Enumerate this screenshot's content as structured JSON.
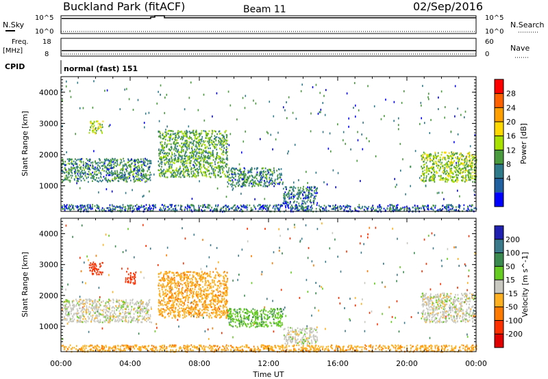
{
  "header": {
    "station": "Buckland Park (fitACF)",
    "beam": "Beam 11",
    "date": "02/Sep/2016"
  },
  "strip_labels": {
    "nsky": "N.Sky",
    "nsky_ticks": [
      "10^5",
      "10^0"
    ],
    "nsearch": "N.Search",
    "nsearch_ticks": [
      "10^5",
      "10^0"
    ],
    "freq": "Freq.",
    "freq_unit": "[MHz]",
    "freq_ticks": [
      "18",
      "8"
    ],
    "nave": "Nave",
    "nave_ticks": [
      "60",
      "0"
    ],
    "cpid": "CPID",
    "mode": "normal (fast) 151"
  },
  "chart_data": [
    {
      "type": "heatmap",
      "panel": "power",
      "xlabel": "",
      "ylabel": "Slant Range [km]",
      "y_ticks": [
        "1000",
        "2000",
        "3000",
        "4000"
      ],
      "ylim": [
        180,
        4500
      ],
      "colorbar": {
        "label": "Power [dB]",
        "ticks": [
          "28",
          "24",
          "20",
          "16",
          "12",
          "8",
          "4"
        ],
        "colors": [
          "#ff0000",
          "#ff6000",
          "#ffa000",
          "#ffd800",
          "#a8e000",
          "#4a9a3e",
          "#2f7a8a",
          "#2060a0",
          "#0000ff"
        ]
      },
      "regions": [
        {
          "t0": 0.0,
          "t1": 5.2,
          "r0": 1150,
          "r1": 1900,
          "value": 8
        },
        {
          "t0": 1.6,
          "t1": 2.4,
          "r0": 2700,
          "r1": 3100,
          "value": 14
        },
        {
          "t0": 5.6,
          "t1": 9.6,
          "r0": 1300,
          "r1": 2800,
          "value": 10
        },
        {
          "t0": 9.6,
          "t1": 12.8,
          "r0": 1000,
          "r1": 1600,
          "value": 8
        },
        {
          "t0": 12.8,
          "t1": 14.8,
          "r0": 450,
          "r1": 1000,
          "value": 7
        },
        {
          "t0": 20.8,
          "t1": 24.0,
          "r0": 1150,
          "r1": 2100,
          "value": 13
        },
        {
          "t0": 0.0,
          "t1": 24.0,
          "r0": 200,
          "r1": 420,
          "value": 6
        }
      ]
    },
    {
      "type": "heatmap",
      "panel": "velocity",
      "xlabel": "Time UT",
      "ylabel": "Slant Range [km]",
      "x_ticks": [
        "00:00",
        "04:00",
        "08:00",
        "12:00",
        "16:00",
        "20:00",
        "00:00"
      ],
      "y_ticks": [
        "1000",
        "2000",
        "3000",
        "4000"
      ],
      "ylim": [
        180,
        4500
      ],
      "colorbar": {
        "label": "Velocity [m s^-1]",
        "ticks": [
          "200",
          "100",
          "50",
          "15",
          "-15",
          "-50",
          "-100",
          "-200"
        ],
        "colors": [
          "#2020b0",
          "#3a7a8a",
          "#3a8a50",
          "#66cc22",
          "#c8c8c0",
          "#ffb020",
          "#ff7a00",
          "#ff3000",
          "#e00000"
        ]
      },
      "regions": [
        {
          "t0": 0.0,
          "t1": 5.2,
          "r0": 1150,
          "r1": 1900,
          "value": 0
        },
        {
          "t0": 1.6,
          "t1": 2.4,
          "r0": 2700,
          "r1": 3100,
          "value": -180
        },
        {
          "t0": 3.7,
          "t1": 4.3,
          "r0": 2400,
          "r1": 2800,
          "value": -120
        },
        {
          "t0": 5.6,
          "t1": 9.6,
          "r0": 1300,
          "r1": 2800,
          "value": -40
        },
        {
          "t0": 9.6,
          "t1": 12.8,
          "r0": 1000,
          "r1": 1600,
          "value": 40
        },
        {
          "t0": 12.8,
          "t1": 14.8,
          "r0": 450,
          "r1": 1000,
          "value": 0
        },
        {
          "t0": 20.8,
          "t1": 24.0,
          "r0": 1150,
          "r1": 2100,
          "value": 0
        },
        {
          "t0": 0.0,
          "t1": 24.0,
          "r0": 200,
          "r1": 420,
          "value": -40
        }
      ]
    }
  ]
}
